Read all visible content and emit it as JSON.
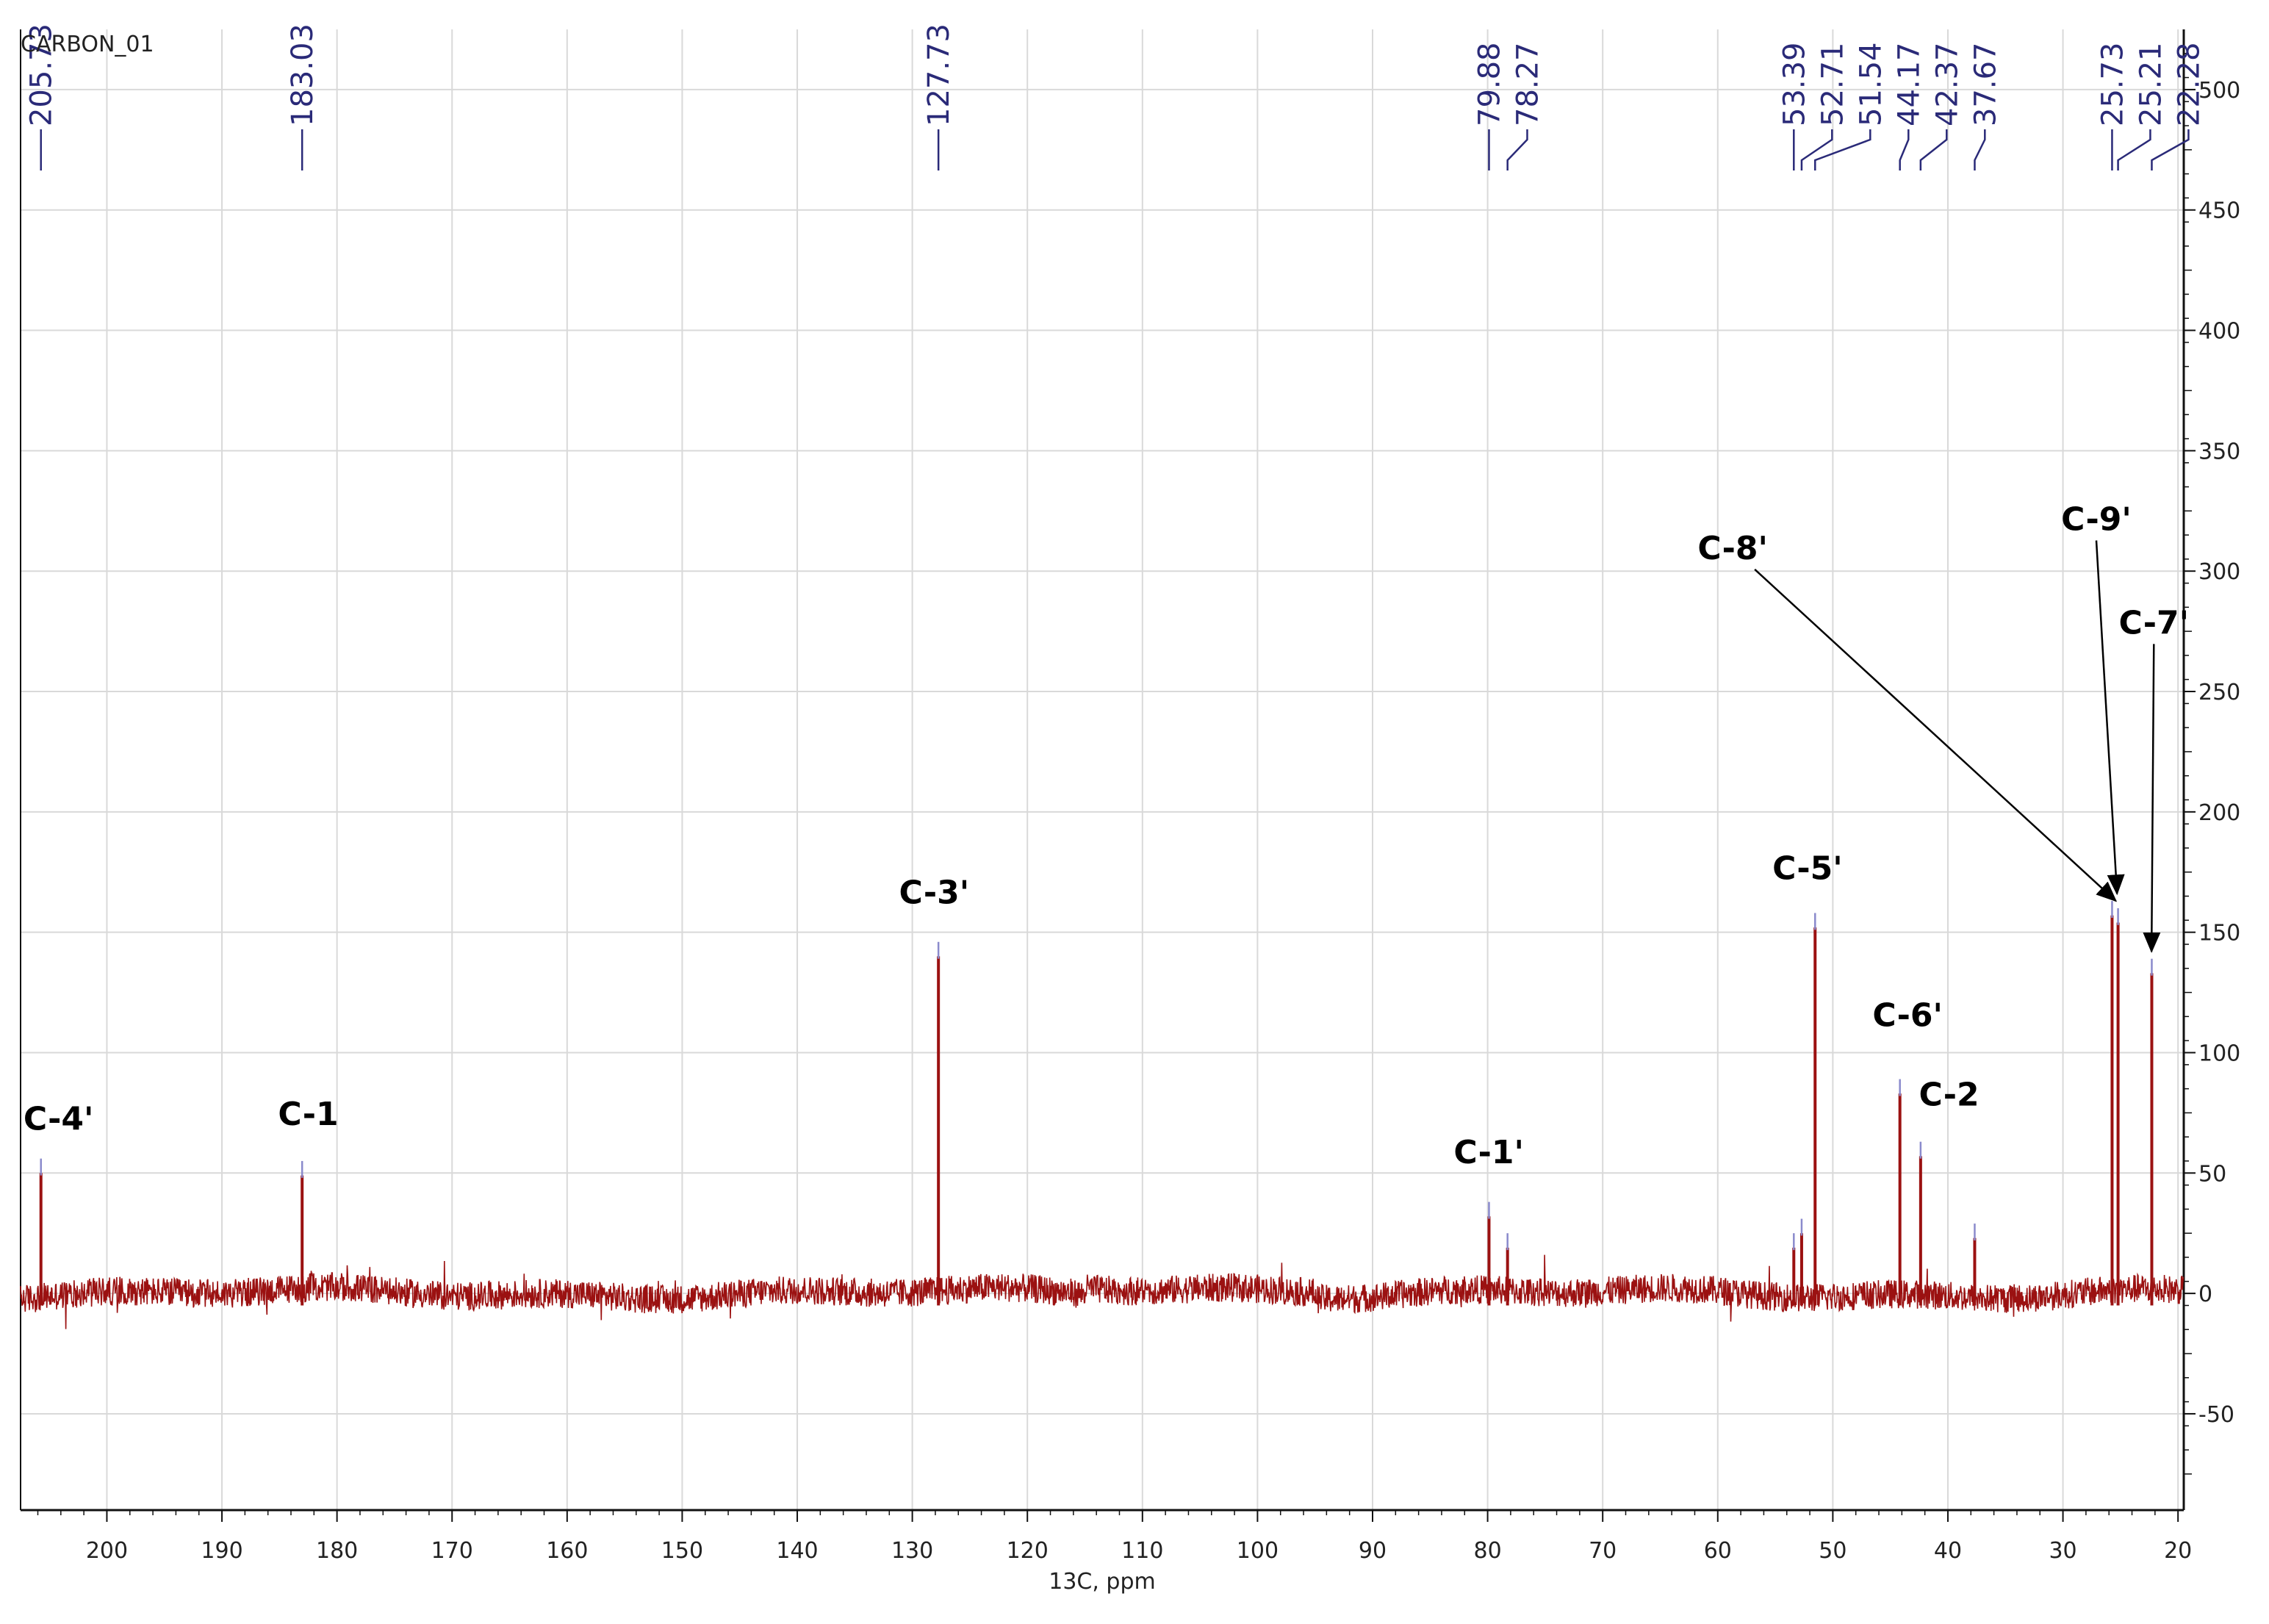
{
  "chart_data": {
    "type": "line",
    "title": "CARBON_01",
    "xlabel": "13C, ppm",
    "ylabel": "",
    "xlim": [
      207.5,
      19.5
    ],
    "ylim": [
      -90,
      525
    ],
    "x_reversed": true,
    "y_axis_side": "right",
    "grid": true,
    "x_ticks": [
      200,
      190,
      180,
      170,
      160,
      150,
      140,
      130,
      120,
      110,
      100,
      90,
      80,
      70,
      60,
      50,
      40,
      30,
      20
    ],
    "y_ticks": [
      500,
      450,
      400,
      350,
      300,
      250,
      200,
      150,
      100,
      50,
      0,
      -50
    ],
    "baseline_noise": 6,
    "line_color": "#9b1111",
    "peak_label_color": "#2a2a78",
    "peaks": [
      {
        "ppm": 205.73,
        "height": 56,
        "label": "205.73"
      },
      {
        "ppm": 183.03,
        "height": 55,
        "label": "183.03"
      },
      {
        "ppm": 127.73,
        "height": 146,
        "label": "127.73"
      },
      {
        "ppm": 79.88,
        "height": 38,
        "label": "79.88"
      },
      {
        "ppm": 78.27,
        "height": 25,
        "label": "78.27"
      },
      {
        "ppm": 53.39,
        "height": 25,
        "label": "53.39"
      },
      {
        "ppm": 52.71,
        "height": 31,
        "label": "52.71"
      },
      {
        "ppm": 51.54,
        "height": 158,
        "label": "51.54"
      },
      {
        "ppm": 44.17,
        "height": 89,
        "label": "44.17"
      },
      {
        "ppm": 42.37,
        "height": 63,
        "label": "42.37"
      },
      {
        "ppm": 37.67,
        "height": 29,
        "label": "37.67"
      },
      {
        "ppm": 25.73,
        "height": 163,
        "label": "25.73"
      },
      {
        "ppm": 25.21,
        "height": 160,
        "label": "25.21"
      },
      {
        "ppm": 22.28,
        "height": 139,
        "label": "22.28"
      }
    ],
    "assignments": [
      {
        "label": "C-4'",
        "ppm": 204.2,
        "y": 68
      },
      {
        "label": "C-1",
        "ppm": 182.5,
        "y": 70
      },
      {
        "label": "C-3'",
        "ppm": 128.1,
        "y": 162
      },
      {
        "label": "C-1'",
        "ppm": 79.9,
        "y": 54
      },
      {
        "label": "C-5'",
        "ppm": 52.2,
        "y": 172
      },
      {
        "label": "C-6'",
        "ppm": 43.5,
        "y": 111
      },
      {
        "label": "C-2",
        "ppm": 39.9,
        "y": 78
      },
      {
        "label": "C-8'",
        "ppm": 58.7,
        "y": 305,
        "arrow_to": {
          "ppm": 25.4,
          "y": 163
        }
      },
      {
        "label": "C-9'",
        "ppm": 27.1,
        "y": 317,
        "arrow_to": {
          "ppm": 25.3,
          "y": 166
        }
      },
      {
        "label": "C-7'",
        "ppm": 22.1,
        "y": 274,
        "arrow_to": {
          "ppm": 22.3,
          "y": 142
        }
      }
    ]
  }
}
